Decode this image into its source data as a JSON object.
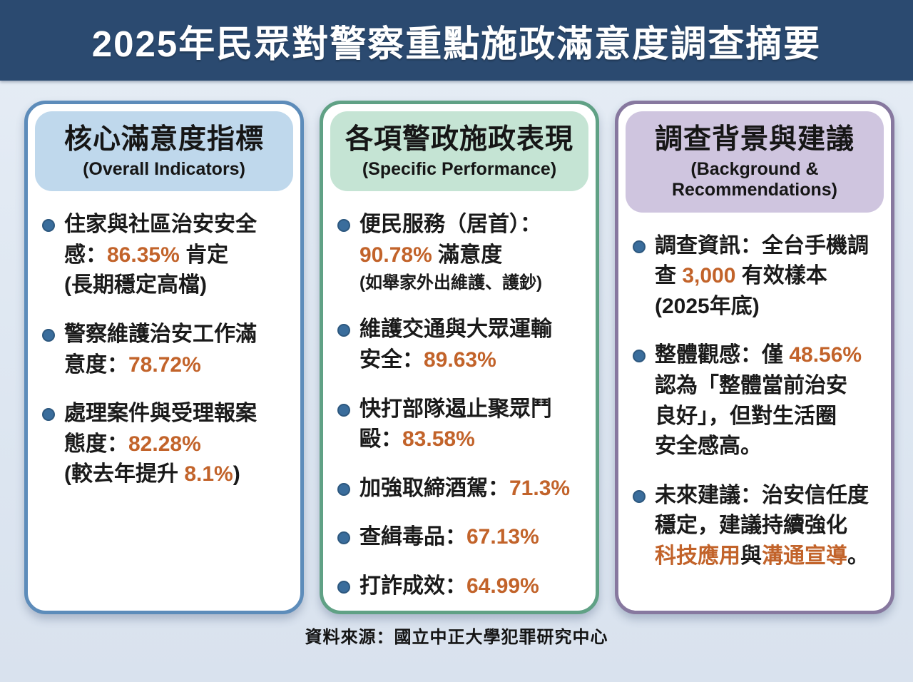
{
  "page": {
    "title": "2025年民眾對警察重點施政滿意度調查摘要",
    "footer": "資料來源：國立中正大學犯罪研究中心",
    "colors": {
      "header_bg": "#2b4a70",
      "page_bg": "#dde6f1",
      "accent_orange": "#c2632a",
      "bullet_dot_blue": "#3a6d9c"
    }
  },
  "cards": [
    {
      "id": "overall-indicators",
      "title": "核心滿意度指標",
      "subtitle": "(Overall Indicators)",
      "border_color": "#5d8cba",
      "header_bg": "#bfd8ec",
      "bullets": [
        {
          "lines": [
            {
              "segments": [
                {
                  "t": "住家與社區治安安全"
                }
              ]
            },
            {
              "segments": [
                {
                  "t": "感："
                },
                {
                  "t": "86.35%",
                  "hl": true
                },
                {
                  "t": " 肯定"
                }
              ]
            },
            {
              "segments": [
                {
                  "t": "(長期穩定高檔)"
                }
              ]
            }
          ]
        },
        {
          "lines": [
            {
              "segments": [
                {
                  "t": "警察維護治安工作滿"
                }
              ]
            },
            {
              "segments": [
                {
                  "t": "意度："
                },
                {
                  "t": "78.72%",
                  "hl": true
                }
              ]
            }
          ]
        },
        {
          "lines": [
            {
              "segments": [
                {
                  "t": "處理案件與受理報案"
                }
              ]
            },
            {
              "segments": [
                {
                  "t": "態度："
                },
                {
                  "t": "82.28%",
                  "hl": true
                }
              ]
            },
            {
              "segments": [
                {
                  "t": "(較去年提升 "
                },
                {
                  "t": "8.1%",
                  "hl": true
                },
                {
                  "t": ")"
                }
              ]
            }
          ]
        }
      ]
    },
    {
      "id": "specific-performance",
      "title": "各項警政施政表現",
      "subtitle": "(Specific Performance)",
      "border_color": "#60a185",
      "header_bg": "#c5e4d4",
      "bullets": [
        {
          "lines": [
            {
              "segments": [
                {
                  "t": "便民服務（居首）："
                }
              ]
            },
            {
              "segments": [
                {
                  "t": "90.78%",
                  "hl": true
                },
                {
                  "t": " 滿意度"
                }
              ]
            },
            {
              "small": true,
              "segments": [
                {
                  "t": "(如舉家外出維護、護鈔)"
                }
              ]
            }
          ]
        },
        {
          "lines": [
            {
              "segments": [
                {
                  "t": "維護交通與大眾運輸"
                }
              ]
            },
            {
              "segments": [
                {
                  "t": "安全："
                },
                {
                  "t": "89.63%",
                  "hl": true
                }
              ]
            }
          ]
        },
        {
          "lines": [
            {
              "segments": [
                {
                  "t": "快打部隊遏止聚眾鬥"
                }
              ]
            },
            {
              "segments": [
                {
                  "t": "毆："
                },
                {
                  "t": "83.58%",
                  "hl": true
                }
              ]
            }
          ]
        },
        {
          "lines": [
            {
              "segments": [
                {
                  "t": "加強取締酒駕："
                },
                {
                  "t": "71.3%",
                  "hl": true
                }
              ]
            }
          ]
        },
        {
          "lines": [
            {
              "segments": [
                {
                  "t": "查緝毒品："
                },
                {
                  "t": "67.13%",
                  "hl": true
                }
              ]
            }
          ]
        },
        {
          "lines": [
            {
              "segments": [
                {
                  "t": "打詐成效："
                },
                {
                  "t": "64.99%",
                  "hl": true
                }
              ]
            }
          ]
        }
      ]
    },
    {
      "id": "background-recommendations",
      "title": "調查背景與建議",
      "subtitle": "(Background & Recommendations)",
      "border_color": "#87789f",
      "header_bg": "#cfc5df",
      "bullets": [
        {
          "lines": [
            {
              "segments": [
                {
                  "t": "調查資訊：全台手機調"
                }
              ]
            },
            {
              "segments": [
                {
                  "t": "查 "
                },
                {
                  "t": "3,000",
                  "hl": true
                },
                {
                  "t": " 有效樣本"
                }
              ]
            },
            {
              "segments": [
                {
                  "t": "(2025年底)"
                }
              ]
            }
          ]
        },
        {
          "lines": [
            {
              "segments": [
                {
                  "t": "整體觀感：僅 "
                },
                {
                  "t": "48.56%",
                  "hl": true
                }
              ]
            },
            {
              "segments": [
                {
                  "t": "認為「整體當前治安"
                }
              ]
            },
            {
              "segments": [
                {
                  "t": "良好」，但對生活圈"
                }
              ]
            },
            {
              "segments": [
                {
                  "t": "安全感高。"
                }
              ]
            }
          ]
        },
        {
          "lines": [
            {
              "segments": [
                {
                  "t": "未來建議：治安信任度"
                }
              ]
            },
            {
              "segments": [
                {
                  "t": "穩定，建議持續強化"
                }
              ]
            },
            {
              "segments": [
                {
                  "t": "科技應用",
                  "hl": true
                },
                {
                  "t": "與"
                },
                {
                  "t": "溝通宣導",
                  "hl": true
                },
                {
                  "t": "。"
                }
              ]
            }
          ]
        }
      ]
    }
  ]
}
